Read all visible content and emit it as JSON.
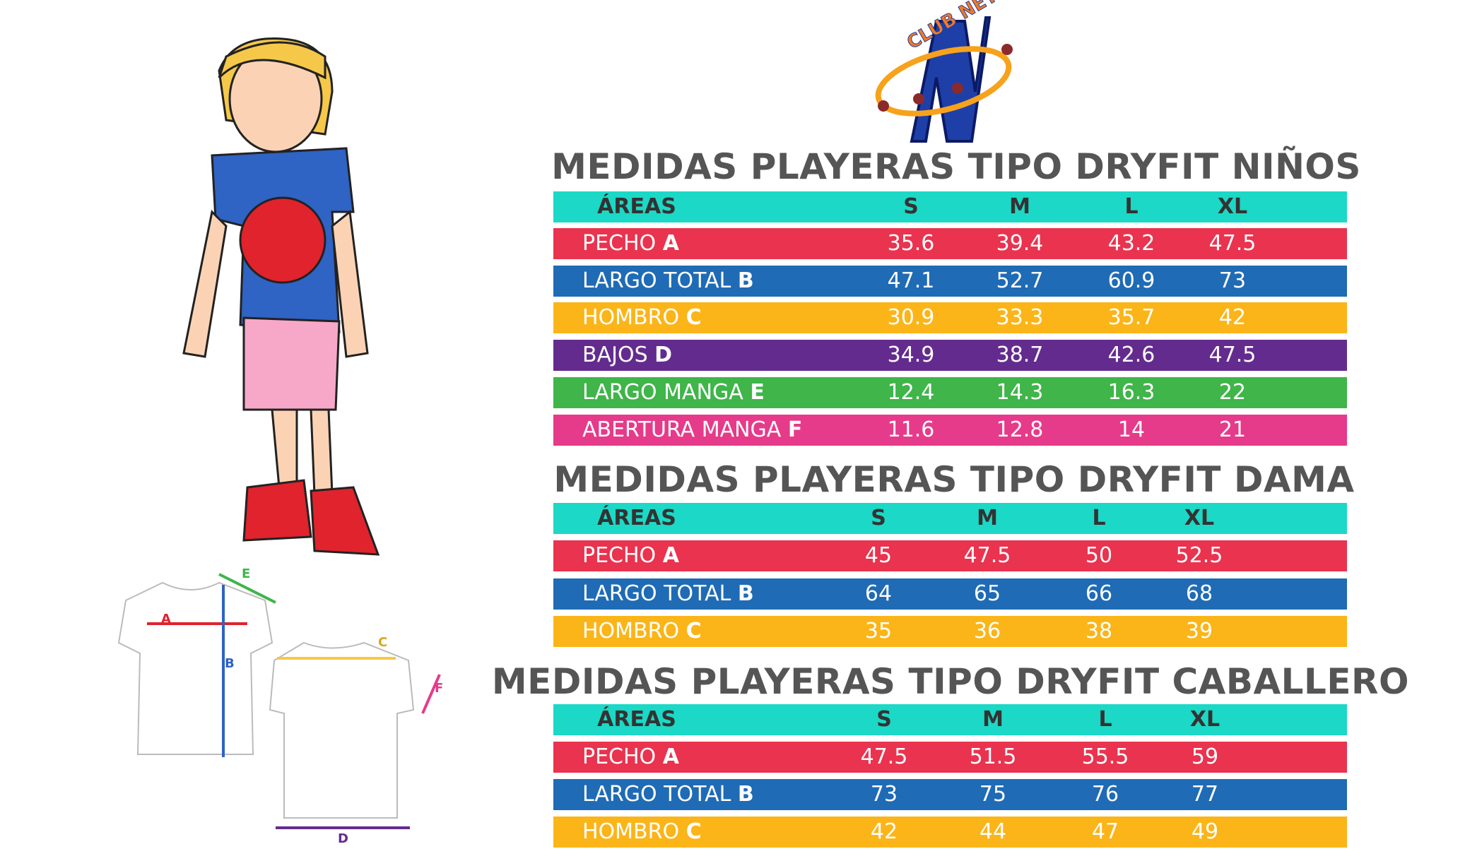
{
  "logo": {
    "text": "CLUB NET",
    "letter": "N"
  },
  "diagram": {
    "labels": [
      "A",
      "B",
      "C",
      "D",
      "E",
      "F"
    ]
  },
  "tables": [
    {
      "title": "MEDIDAS PLAYERAS TIPO DRYFIT NIÑOS",
      "header": [
        "ÁREAS",
        "S",
        "M",
        "L",
        "XL"
      ],
      "rows": [
        {
          "label": "PECHO",
          "letter": "A",
          "values": [
            35.6,
            39.4,
            43.2,
            47.5
          ]
        },
        {
          "label": "LARGO TOTAL",
          "letter": "B",
          "values": [
            47.1,
            52.7,
            60.9,
            73
          ]
        },
        {
          "label": "HOMBRO",
          "letter": "C",
          "values": [
            30.9,
            33.3,
            35.7,
            42
          ]
        },
        {
          "label": "BAJOS",
          "letter": "D",
          "values": [
            34.9,
            38.7,
            42.6,
            47.5
          ]
        },
        {
          "label": "LARGO MANGA",
          "letter": "E",
          "values": [
            12.4,
            14.3,
            16.3,
            22
          ]
        },
        {
          "label": "ABERTURA MANGA",
          "letter": "F",
          "values": [
            11.6,
            12.8,
            14,
            21
          ]
        }
      ]
    },
    {
      "title": "MEDIDAS PLAYERAS TIPO DRYFIT DAMA",
      "header": [
        "ÁREAS",
        "S",
        "M",
        "L",
        "XL"
      ],
      "rows": [
        {
          "label": "PECHO",
          "letter": "A",
          "values": [
            45,
            47.5,
            50,
            52.5
          ]
        },
        {
          "label": "LARGO TOTAL",
          "letter": "B",
          "values": [
            64,
            65,
            66,
            68
          ]
        },
        {
          "label": "HOMBRO",
          "letter": "C",
          "values": [
            35,
            36,
            38,
            39
          ]
        }
      ]
    },
    {
      "title": "MEDIDAS PLAYERAS TIPO DRYFIT CABALLERO",
      "header": [
        "ÁREAS",
        "S",
        "M",
        "L",
        "XL"
      ],
      "rows": [
        {
          "label": "PECHO",
          "letter": "A",
          "values": [
            47.5,
            51.5,
            55.5,
            59
          ]
        },
        {
          "label": "LARGO TOTAL",
          "letter": "B",
          "values": [
            73,
            75,
            76,
            77
          ]
        },
        {
          "label": "HOMBRO",
          "letter": "C",
          "values": [
            42,
            44,
            47,
            49
          ]
        }
      ]
    }
  ]
}
